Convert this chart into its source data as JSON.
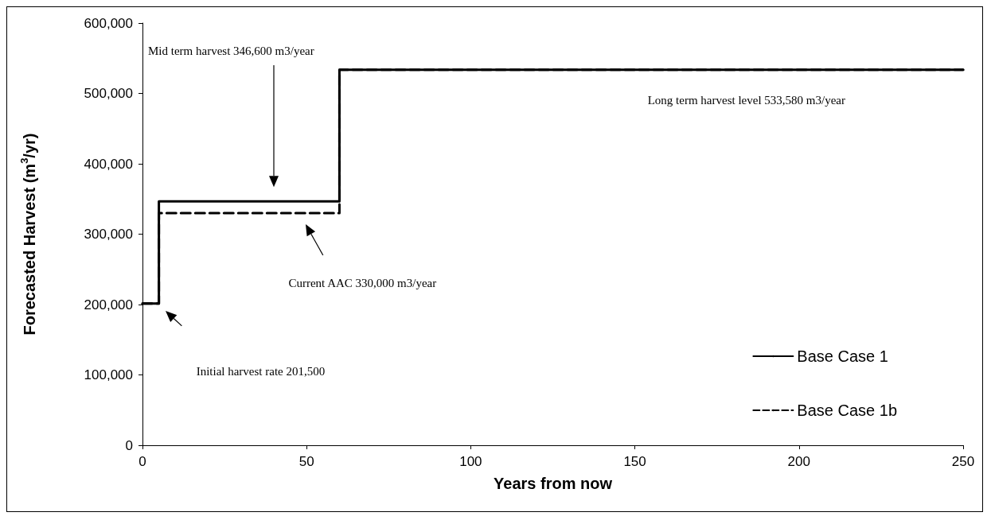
{
  "chart_data": {
    "type": "step",
    "xlabel": "Years from now",
    "ylabel": "Forecasted Harvest (m$^{3}$/yr)",
    "xlim": [
      0,
      250
    ],
    "xticks": [
      0,
      50,
      100,
      150,
      200,
      250
    ],
    "ylim": [
      0,
      600000
    ],
    "yticks": [
      0,
      {
        "value": 100000,
        "label": "100,000"
      },
      {
        "value": 200000,
        "label": "200,000"
      },
      {
        "value": 300000,
        "label": "300,000"
      },
      {
        "value": 400000,
        "label": "400,000"
      },
      {
        "value": 500000,
        "label": "500,000"
      },
      {
        "value": 600000,
        "label": "600,000"
      }
    ],
    "x": [
      0,
      5,
      60,
      250
    ],
    "series": [
      {
        "name": "Base Case 1",
        "color": "#000000",
        "line_style": "solid",
        "values": [
          201500,
          346600,
          533580,
          533580
        ]
      },
      {
        "name": "Base Case 1b",
        "color": "#000000",
        "line_style": "dashed",
        "values": [
          201500,
          330000,
          533580,
          533580
        ]
      }
    ],
    "annotations": [
      "Mid term harvest 346,600 m3/year",
      "Current AAC 330,000 m3/year",
      "Initial harvest rate 201,500",
      "Long term harvest level 533,580 m3/year"
    ],
    "legend": "bottom right",
    "grid": false,
    "marker": "none"
  }
}
